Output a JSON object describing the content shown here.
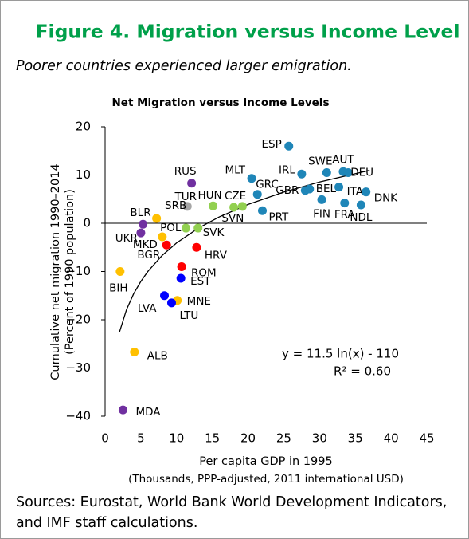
{
  "chart_data": {
    "type": "scatter",
    "figure_title": "Figure 4. Migration versus Income Level",
    "subtitle": "Poorer countries experienced larger emigration.",
    "title": "Net Migration versus Income Levels",
    "y_label": [
      "Cumulative net migration 1990–2014",
      "(Percent of 1990 population)"
    ],
    "x_label": [
      "Per capita GDP in 1995",
      "(Thousands, PPP-adjusted, 2011 international USD)"
    ],
    "annotation": [
      "y = 11.5 ln(x) - 110",
      "R² = 0.60"
    ],
    "source": "Sources: Eurostat, World Bank World Development Indicators, and IMF staff calculations.",
    "xlim": [
      0,
      45
    ],
    "xticks": [
      0,
      5,
      10,
      15,
      20,
      25,
      30,
      35,
      40,
      45
    ],
    "ylim": [
      -40,
      20
    ],
    "yticks": [
      {
        "value": -40,
        "label": "−40"
      },
      {
        "value": -30,
        "label": "−30"
      },
      {
        "value": -20,
        "label": "−20"
      },
      {
        "value": -10,
        "label": "−10"
      },
      0,
      10,
      20
    ],
    "points": [
      {
        "label": "ESP",
        "x": 25.7,
        "y": 16,
        "color": "#1f86b8"
      },
      {
        "label": "IRL",
        "x": 27.5,
        "y": 10.2,
        "color": "#1f86b8"
      },
      {
        "label": "SWE",
        "x": 31,
        "y": 10.5,
        "color": "#1f86b8"
      },
      {
        "label": "AUT",
        "x": 33.3,
        "y": 10.7,
        "color": "#1f86b8"
      },
      {
        "label": "DEU",
        "x": 34,
        "y": 10.5,
        "color": "#1f86b8"
      },
      {
        "label": "MLT",
        "x": 20.5,
        "y": 9.3,
        "color": "#1f86b8"
      },
      {
        "label": "GRC",
        "x": 21.3,
        "y": 6,
        "color": "#1f86b8"
      },
      {
        "label": "GBR",
        "x": 28.0,
        "y": 6.8,
        "color": "#1f86b8"
      },
      {
        "label": "BEL",
        "x": 28.6,
        "y": 7.1,
        "color": "#1f86b8"
      },
      {
        "label": "FIN",
        "x": 30.3,
        "y": 4.9,
        "color": "#1f86b8"
      },
      {
        "label": "FRA",
        "x": 33.5,
        "y": 4.2,
        "color": "#1f86b8"
      },
      {
        "label": "ITA",
        "x": 32.7,
        "y": 7.5,
        "color": "#1f86b8"
      },
      {
        "label": "DNK",
        "x": 36.5,
        "y": 6.5,
        "color": "#1f86b8"
      },
      {
        "label": "NDL",
        "x": 35.8,
        "y": 3.8,
        "color": "#1f86b8"
      },
      {
        "label": "PRT",
        "x": 22,
        "y": 2.6,
        "color": "#1f86b8"
      },
      {
        "label": "HUN",
        "x": 15.1,
        "y": 3.6,
        "color": "#92d050"
      },
      {
        "label": "CZE",
        "x": 18,
        "y": 3.3,
        "color": "#92d050"
      },
      {
        "label": "SVN",
        "x": 19.2,
        "y": 3.5,
        "color": "#92d050"
      },
      {
        "label": "POL",
        "x": 11.3,
        "y": -1,
        "color": "#92d050"
      },
      {
        "label": "SVK",
        "x": 13,
        "y": -1,
        "color": "#92d050"
      },
      {
        "label": "TUR",
        "x": 11.5,
        "y": 3.5,
        "color": "#a6a6a6"
      },
      {
        "label": "RUS",
        "x": 12.1,
        "y": 8.3,
        "color": "#7030a0"
      },
      {
        "label": "BLR",
        "x": 5.3,
        "y": -0.2,
        "color": "#7030a0"
      },
      {
        "label": "UKR",
        "x": 5,
        "y": -2,
        "color": "#7030a0"
      },
      {
        "label": "MDA",
        "x": 2.5,
        "y": -38.7,
        "color": "#7030a0"
      },
      {
        "label": "SRB",
        "x": 7.2,
        "y": 1,
        "color": "#ffc000"
      },
      {
        "label": "MKD",
        "x": 8,
        "y": -2.8,
        "color": "#ffc000"
      },
      {
        "label": "BIH",
        "x": 2.1,
        "y": -10,
        "color": "#ffc000"
      },
      {
        "label": "ALB",
        "x": 4.1,
        "y": -26.7,
        "color": "#ffc000"
      },
      {
        "label": "MNE",
        "x": 10.1,
        "y": -16,
        "color": "#ffc000"
      },
      {
        "label": "BGR",
        "x": 8.6,
        "y": -4.5,
        "color": "#ff0000"
      },
      {
        "label": "HRV",
        "x": 12.8,
        "y": -5,
        "color": "#ff0000"
      },
      {
        "label": "ROM",
        "x": 10.7,
        "y": -9,
        "color": "#ff0000"
      },
      {
        "label": "EST",
        "x": 10.6,
        "y": -11.4,
        "color": "#0000ff"
      },
      {
        "label": "LVA",
        "x": 8.3,
        "y": -15,
        "color": "#0000ff"
      },
      {
        "label": "LTU",
        "x": 9.3,
        "y": -16.5,
        "color": "#0000ff"
      }
    ],
    "trendline": {
      "x": [
        2,
        3,
        4,
        5,
        6,
        8,
        10,
        13,
        16,
        20,
        25,
        30,
        37
      ],
      "values": [
        -22.6,
        -17.9,
        -14.6,
        -12.05,
        -9.95,
        -6.64,
        -4.06,
        -1.05,
        1.34,
        3.9,
        6.47,
        8.57,
        10.98
      ]
    }
  }
}
